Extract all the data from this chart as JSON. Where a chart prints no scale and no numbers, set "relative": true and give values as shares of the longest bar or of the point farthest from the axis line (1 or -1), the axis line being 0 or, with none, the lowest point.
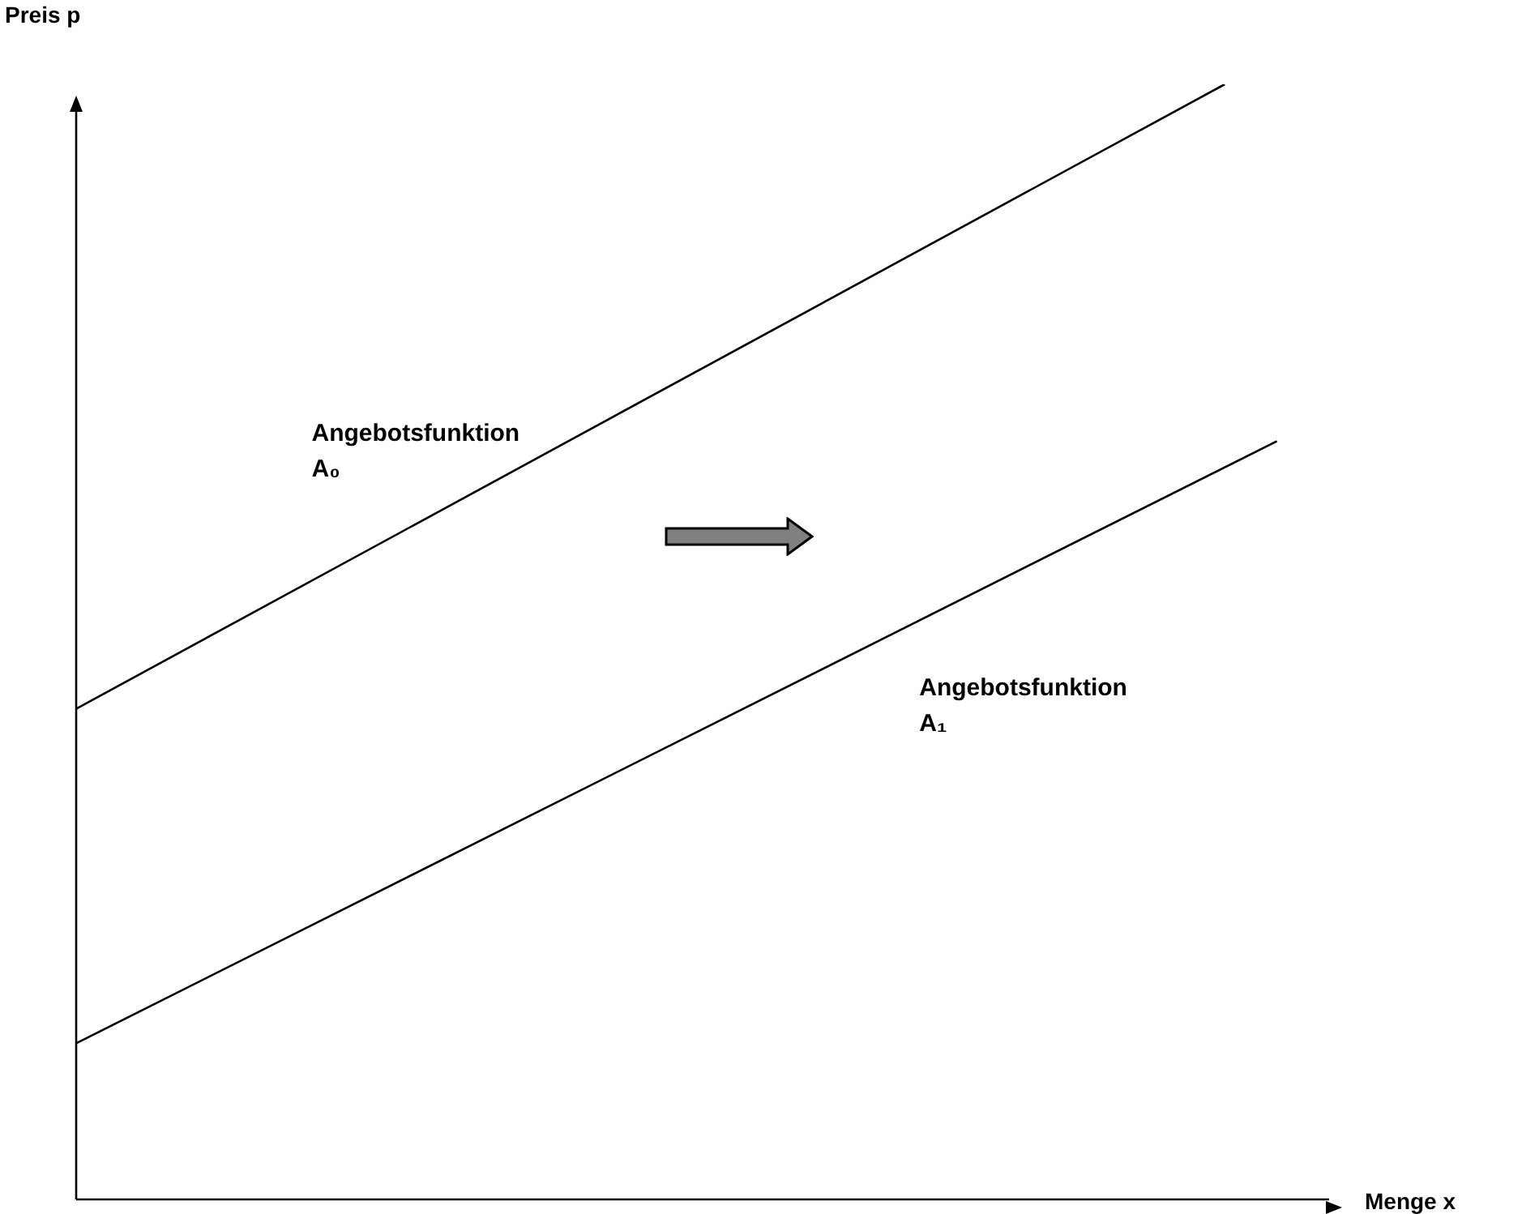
{
  "chart_data": {
    "type": "line",
    "relative": true,
    "xlabel": "Menge x",
    "ylabel": "Preis p",
    "legend": false,
    "marker": "none",
    "line_style": "solid",
    "categories": [
      null,
      null,
      null,
      null,
      null,
      null,
      null,
      null,
      null,
      null,
      null,
      null,
      null,
      null,
      null,
      null,
      null,
      null,
      null,
      null,
      null,
      null,
      null,
      null,
      null
    ],
    "series": [
      {
        "name": "Angebotsfunktion A₀",
        "color": "#000000",
        "values": [
          0.44,
          null,
          null,
          null,
          null,
          null,
          null,
          null,
          null,
          null,
          null,
          null,
          null,
          null,
          null,
          null,
          null,
          null,
          null,
          null,
          null,
          null,
          1,
          null,
          null
        ]
      },
      {
        "name": "Angebotsfunktion A₁",
        "color": "#000000",
        "values": [
          0.14,
          null,
          null,
          null,
          null,
          null,
          null,
          null,
          null,
          null,
          null,
          null,
          null,
          null,
          null,
          null,
          null,
          null,
          null,
          null,
          null,
          null,
          null,
          0.68,
          null
        ]
      }
    ]
  }
}
